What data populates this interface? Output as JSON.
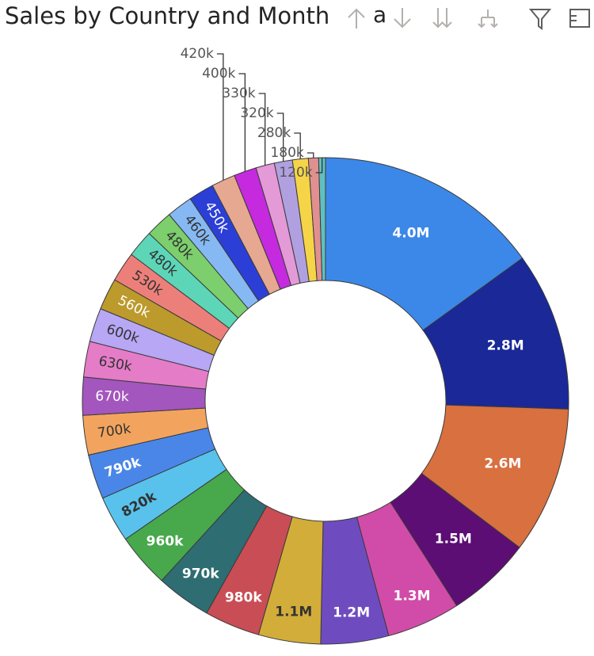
{
  "visual": {
    "title": "Sales by Country and Month",
    "header_icons": [
      "arrow-up-icon",
      "arrow-down-icon",
      "double-arrow-down-icon",
      "expand-hierarchy-icon",
      "filter-icon",
      "focus-mode-icon"
    ],
    "title_fragment": "a"
  },
  "chart_data": {
    "type": "pie",
    "variant": "donut",
    "title": "Sales by Country and Month",
    "slices": [
      {
        "label": "4.0M",
        "value": 4000000,
        "color": "#3c88e8"
      },
      {
        "label": "2.8M",
        "value": 2800000,
        "color": "#1a2898"
      },
      {
        "label": "2.6M",
        "value": 2600000,
        "color": "#d8703f"
      },
      {
        "label": "1.5M",
        "value": 1500000,
        "color": "#5c0e74"
      },
      {
        "label": "1.3M",
        "value": 1300000,
        "color": "#d14ca8"
      },
      {
        "label": "1.2M",
        "value": 1200000,
        "color": "#6e4cc0"
      },
      {
        "label": "1.1M",
        "value": 1100000,
        "color": "#d2ad3a"
      },
      {
        "label": "980k",
        "value": 980000,
        "color": "#c94d55"
      },
      {
        "label": "970k",
        "value": 970000,
        "color": "#2e6d72"
      },
      {
        "label": "960k",
        "value": 960000,
        "color": "#48a84c"
      },
      {
        "label": "820k",
        "value": 820000,
        "color": "#58c2ec"
      },
      {
        "label": "790k",
        "value": 790000,
        "color": "#4a86e8"
      },
      {
        "label": "700k",
        "value": 700000,
        "color": "#f2a45e"
      },
      {
        "label": "670k",
        "value": 670000,
        "color": "#a356bd"
      },
      {
        "label": "630k",
        "value": 630000,
        "color": "#e57cc7"
      },
      {
        "label": "600k",
        "value": 600000,
        "color": "#b7a7f5"
      },
      {
        "label": "560k",
        "value": 560000,
        "color": "#bc9a2c"
      },
      {
        "label": "530k",
        "value": 530000,
        "color": "#ed7f7a"
      },
      {
        "label": "480k",
        "value": 480000,
        "color": "#5dd6b8"
      },
      {
        "label": "480k",
        "value": 480000,
        "color": "#7ccf6c"
      },
      {
        "label": "460k",
        "value": 460000,
        "color": "#86b9f3"
      },
      {
        "label": "450k",
        "value": 450000,
        "color": "#2b3fd6"
      },
      {
        "label": "420k",
        "value": 420000,
        "color": "#e6a890"
      },
      {
        "label": "400k",
        "value": 400000,
        "color": "#c52adf"
      },
      {
        "label": "330k",
        "value": 330000,
        "color": "#e39ad6"
      },
      {
        "label": "320k",
        "value": 320000,
        "color": "#b0a0e0"
      },
      {
        "label": "280k",
        "value": 280000,
        "color": "#f5d547"
      },
      {
        "label": "180k",
        "value": 180000,
        "color": "#e09090"
      },
      {
        "label": "120k",
        "value": 120000,
        "color": "#5fc0c0"
      }
    ]
  }
}
